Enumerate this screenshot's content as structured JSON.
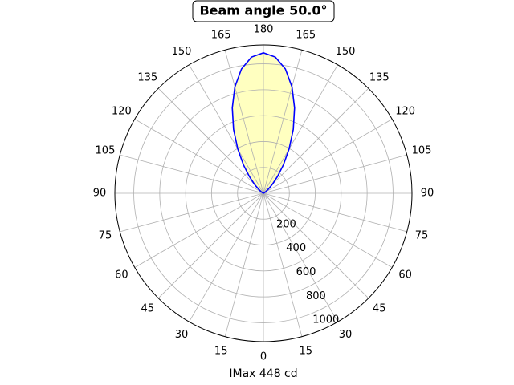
{
  "chart_data": {
    "type": "polar",
    "title": "Beam angle 50.0°",
    "xlabel": "IMax 448 cd",
    "rlim": [
      0,
      1146
    ],
    "rticks": [
      200,
      400,
      600,
      800,
      1000
    ],
    "thetaticks": [
      {
        "value": 0,
        "label": "0"
      },
      {
        "value": 15,
        "label": "15"
      },
      {
        "value": 30,
        "label": "30"
      },
      {
        "value": 45,
        "label": "45"
      },
      {
        "value": 60,
        "label": "60"
      },
      {
        "value": 75,
        "label": "75"
      },
      {
        "value": 90,
        "label": "90"
      },
      {
        "value": 105,
        "label": "105"
      },
      {
        "value": 120,
        "label": "120"
      },
      {
        "value": 135,
        "label": "135"
      },
      {
        "value": 150,
        "label": "150"
      },
      {
        "value": 165,
        "label": "165"
      },
      {
        "value": 180,
        "label": "180"
      },
      {
        "value": 195,
        "label": "165"
      },
      {
        "value": 210,
        "label": "150"
      },
      {
        "value": 225,
        "label": "135"
      },
      {
        "value": 240,
        "label": "120"
      },
      {
        "value": 255,
        "label": "105"
      },
      {
        "value": 270,
        "label": "90"
      },
      {
        "value": 285,
        "label": "75"
      },
      {
        "value": 300,
        "label": "60"
      },
      {
        "value": 315,
        "label": "45"
      },
      {
        "value": 330,
        "label": "30"
      },
      {
        "value": 345,
        "label": "15"
      }
    ],
    "grid": true,
    "series": [
      {
        "color": "#0000ff",
        "fill": "#ffffc0",
        "x": [
          90,
          95,
          100,
          105,
          110,
          115,
          120,
          125,
          130,
          135,
          140,
          145,
          150,
          155,
          160,
          165,
          170,
          175,
          180,
          185,
          190,
          195,
          200,
          205,
          210,
          215,
          220,
          225,
          230,
          235,
          240,
          245,
          250,
          255,
          260,
          265,
          270
        ],
        "values": [
          0,
          0,
          0,
          0,
          1,
          3,
          8,
          22,
          49,
          96,
          168,
          269,
          396,
          545,
          702,
          851,
          975,
          1056,
          1085,
          1056,
          975,
          851,
          702,
          545,
          396,
          269,
          168,
          96,
          49,
          22,
          8,
          3,
          1,
          0,
          0,
          0,
          0
        ]
      }
    ]
  }
}
